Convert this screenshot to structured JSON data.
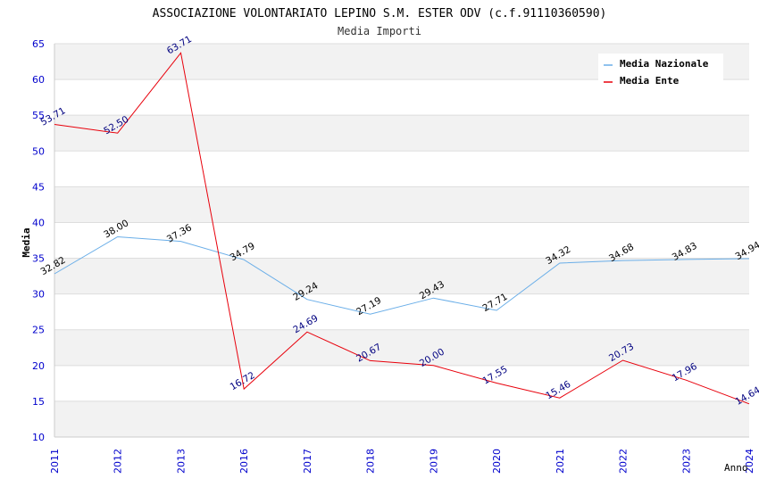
{
  "chart_data": {
    "type": "line",
    "title": "ASSOCIAZIONE VOLONTARIATO LEPINO S.M. ESTER ODV (c.f.91110360590)",
    "subtitle": "Media Importi",
    "xlabel": "Anno",
    "ylabel": "Media",
    "categories": [
      "2011",
      "2012",
      "2013",
      "2016",
      "2017",
      "2018",
      "2019",
      "2020",
      "2021",
      "2022",
      "2023",
      "2024"
    ],
    "ylim": [
      10,
      65
    ],
    "yticks": [
      10,
      15,
      20,
      25,
      30,
      35,
      40,
      45,
      50,
      55,
      60,
      65
    ],
    "grid": "horizontal bands",
    "legend_position": "top-right",
    "series": [
      {
        "name": "Media Nazionale",
        "color": "#6aaee8",
        "label_color": "#000000",
        "values": [
          32.82,
          38.0,
          37.36,
          34.79,
          29.24,
          27.19,
          29.43,
          27.71,
          34.32,
          34.68,
          34.83,
          34.94
        ],
        "labels": [
          "32.82",
          "38.00",
          "37.36",
          "34.79",
          "29.24",
          "27.19",
          "29.43",
          "27.71",
          "34.32",
          "34.68",
          "34.83",
          "34.94"
        ]
      },
      {
        "name": "Media Ente",
        "color": "#e8000b",
        "label_color": "#000080",
        "values": [
          53.71,
          52.5,
          63.71,
          16.72,
          24.69,
          20.67,
          20.0,
          17.55,
          15.46,
          20.73,
          17.96,
          14.64
        ],
        "labels": [
          "53.71",
          "52.50",
          "63.71",
          "16.72",
          "24.69",
          "20.67",
          "20.00",
          "17.55",
          "15.46",
          "20.73",
          "17.96",
          "14.64"
        ]
      }
    ]
  }
}
